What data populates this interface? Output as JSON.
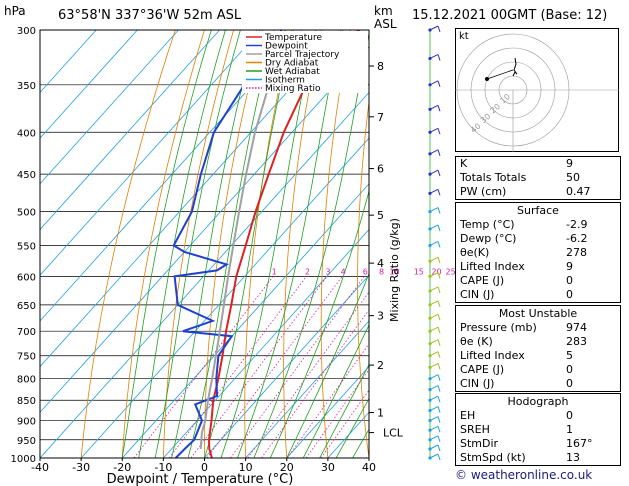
{
  "header": {
    "hpa_label": "hPa",
    "location": "63°58'N  337°36'W  52m  ASL",
    "km_label": "km",
    "asl_label": "ASL",
    "datetime": "15.12.2021  00GMT  (Base: 12)"
  },
  "chart_data": {
    "type": "line",
    "title": "",
    "xlabel": "Dewpoint / Temperature (°C)",
    "ylabel": "Mixing Ratio (g/kg)",
    "xlim": [
      -40,
      40
    ],
    "x_ticks": [
      -40,
      -30,
      -20,
      -10,
      0,
      10,
      20,
      30,
      40
    ],
    "y_scale": "log-pressure",
    "ylim": [
      1000,
      300
    ],
    "pressure_levels": [
      300,
      350,
      400,
      450,
      500,
      550,
      600,
      650,
      700,
      750,
      800,
      850,
      900,
      950,
      1000
    ],
    "km_ticks": [
      {
        "label": "8",
        "p": 332
      },
      {
        "label": "7",
        "p": 383
      },
      {
        "label": "6",
        "p": 443
      },
      {
        "label": "5",
        "p": 505
      },
      {
        "label": "4",
        "p": 578
      },
      {
        "label": "3",
        "p": 670
      },
      {
        "label": "2",
        "p": 770
      },
      {
        "label": "1",
        "p": 880
      },
      {
        "label": "LCL",
        "p": 931
      }
    ],
    "mixing_ratio_labels": [
      "1",
      "2",
      "3",
      "4",
      "6",
      "8",
      "10",
      "15",
      "20",
      "25"
    ],
    "legend": [
      {
        "name": "Temperature",
        "color": "#e02020",
        "dash": "solid"
      },
      {
        "name": "Dewpoint",
        "color": "#2040d0",
        "dash": "solid"
      },
      {
        "name": "Parcel Trajectory",
        "color": "#a0a0a0",
        "dash": "solid"
      },
      {
        "name": "Dry Adiabat",
        "color": "#e08000",
        "dash": "solid"
      },
      {
        "name": "Wet Adiabat",
        "color": "#20a020",
        "dash": "solid"
      },
      {
        "name": "Isotherm",
        "color": "#20a0e0",
        "dash": "solid"
      },
      {
        "name": "Mixing Ratio",
        "color": "#d020a0",
        "dash": "dotted"
      }
    ],
    "legend_position": "top-left",
    "series": [
      {
        "name": "Temperature",
        "color": "#e02020",
        "points": [
          [
            1000,
            1.8
          ],
          [
            975,
            -0.8
          ],
          [
            950,
            -2.9
          ],
          [
            900,
            -6.5
          ],
          [
            850,
            -10.5
          ],
          [
            800,
            -14
          ],
          [
            750,
            -18
          ],
          [
            700,
            -22.5
          ],
          [
            650,
            -27
          ],
          [
            600,
            -32
          ],
          [
            550,
            -36.5
          ],
          [
            500,
            -41.5
          ],
          [
            450,
            -46.5
          ],
          [
            400,
            -52
          ],
          [
            350,
            -57
          ],
          [
            320,
            -59
          ],
          [
            300,
            -56
          ]
        ]
      },
      {
        "name": "Dewpoint",
        "color": "#2040d0",
        "points": [
          [
            1000,
            -7
          ],
          [
            975,
            -6.8
          ],
          [
            950,
            -6.5
          ],
          [
            900,
            -8.8
          ],
          [
            860,
            -14
          ],
          [
            840,
            -10.5
          ],
          [
            800,
            -14.5
          ],
          [
            750,
            -19
          ],
          [
            710,
            -20
          ],
          [
            700,
            -33
          ],
          [
            680,
            -28
          ],
          [
            650,
            -40
          ],
          [
            600,
            -47
          ],
          [
            590,
            -38
          ],
          [
            580,
            -37
          ],
          [
            560,
            -50
          ],
          [
            550,
            -54
          ],
          [
            500,
            -57
          ],
          [
            450,
            -63
          ],
          [
            400,
            -69
          ],
          [
            350,
            -72
          ],
          [
            320,
            -72
          ],
          [
            300,
            -75
          ]
        ]
      },
      {
        "name": "Parcel Trajectory",
        "color": "#a0a0a0",
        "points": [
          [
            975,
            -2.9
          ],
          [
            931,
            -6.2
          ],
          [
            900,
            -8
          ],
          [
            850,
            -11.8
          ],
          [
            800,
            -15.5
          ],
          [
            750,
            -19.6
          ],
          [
            700,
            -24
          ],
          [
            650,
            -28.8
          ],
          [
            600,
            -34
          ],
          [
            550,
            -39.5
          ],
          [
            500,
            -45.5
          ],
          [
            450,
            -52
          ],
          [
            400,
            -59
          ],
          [
            350,
            -66
          ],
          [
            300,
            -74
          ]
        ]
      }
    ]
  },
  "indices": {
    "rows": [
      {
        "label": "K",
        "value": "9"
      },
      {
        "label": "Totals Totals",
        "value": "50"
      },
      {
        "label": "PW (cm)",
        "value": "0.47"
      }
    ]
  },
  "surface": {
    "title": "Surface",
    "rows": [
      {
        "label": "Temp (°C)",
        "value": "-2.9"
      },
      {
        "label": "Dewp (°C)",
        "value": "-6.2"
      },
      {
        "label": "θe(K)",
        "value": "278"
      },
      {
        "label": "Lifted Index",
        "value": "9"
      },
      {
        "label": "CAPE (J)",
        "value": "0"
      },
      {
        "label": "CIN (J)",
        "value": "0"
      }
    ]
  },
  "most_unstable": {
    "title": "Most Unstable",
    "rows": [
      {
        "label": "Pressure (mb)",
        "value": "974"
      },
      {
        "label": "θe (K)",
        "value": "283"
      },
      {
        "label": "Lifted Index",
        "value": "5"
      },
      {
        "label": "CAPE (J)",
        "value": "0"
      },
      {
        "label": "CIN (J)",
        "value": "0"
      }
    ]
  },
  "hodograph_table": {
    "title": "Hodograph",
    "rows": [
      {
        "label": "EH",
        "value": "0"
      },
      {
        "label": "SREH",
        "value": "1"
      },
      {
        "label": "StmDir",
        "value": "167°"
      },
      {
        "label": "StmSpd (kt)",
        "value": "13"
      }
    ]
  },
  "hodograph": {
    "unit_label": "kt",
    "ring_labels": [
      "10",
      "20",
      "30",
      "40"
    ]
  },
  "footer": {
    "copyright": "© weatheronline.co.uk"
  }
}
